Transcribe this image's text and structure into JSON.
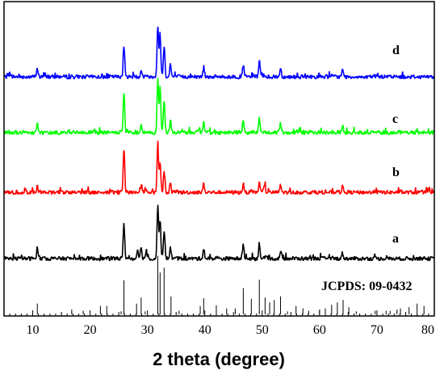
{
  "chart_data": {
    "type": "line",
    "xlabel": "2 theta (degree)",
    "ylabel": "",
    "xlim": [
      5,
      80
    ],
    "x_ticks": [
      10,
      20,
      30,
      40,
      50,
      60,
      70,
      80
    ],
    "y_ticks_shown": false,
    "series": [
      {
        "name": "d",
        "color": "#0000ff",
        "peaks": [
          [
            10.8,
            0.12
          ],
          [
            25.9,
            0.45
          ],
          [
            28.9,
            0.1
          ],
          [
            31.8,
            0.72
          ],
          [
            32.2,
            0.62
          ],
          [
            32.9,
            0.45
          ],
          [
            34.0,
            0.18
          ],
          [
            39.8,
            0.14
          ],
          [
            46.7,
            0.16
          ],
          [
            49.5,
            0.22
          ],
          [
            53.2,
            0.12
          ],
          [
            64.0,
            0.09
          ]
        ]
      },
      {
        "name": "c",
        "color": "#00ff00",
        "peaks": [
          [
            10.8,
            0.12
          ],
          [
            25.9,
            0.55
          ],
          [
            28.9,
            0.1
          ],
          [
            31.8,
            0.75
          ],
          [
            32.2,
            0.6
          ],
          [
            32.9,
            0.45
          ],
          [
            34.0,
            0.18
          ],
          [
            39.8,
            0.14
          ],
          [
            46.7,
            0.16
          ],
          [
            49.5,
            0.2
          ],
          [
            53.2,
            0.12
          ],
          [
            64.0,
            0.09
          ]
        ]
      },
      {
        "name": "b",
        "color": "#ff0000",
        "peaks": [
          [
            10.8,
            0.08
          ],
          [
            25.9,
            0.62
          ],
          [
            28.9,
            0.08
          ],
          [
            31.8,
            0.7
          ],
          [
            32.2,
            0.42
          ],
          [
            32.9,
            0.28
          ],
          [
            34.0,
            0.12
          ],
          [
            39.8,
            0.12
          ],
          [
            46.7,
            0.12
          ],
          [
            49.5,
            0.14
          ],
          [
            50.4,
            0.12
          ],
          [
            53.2,
            0.1
          ],
          [
            64.0,
            0.08
          ]
        ]
      },
      {
        "name": "a",
        "color": "#000000",
        "peaks": [
          [
            10.8,
            0.14
          ],
          [
            25.9,
            0.5
          ],
          [
            28.3,
            0.14
          ],
          [
            28.9,
            0.16
          ],
          [
            29.8,
            0.12
          ],
          [
            31.8,
            0.75
          ],
          [
            32.2,
            0.55
          ],
          [
            32.9,
            0.4
          ],
          [
            34.0,
            0.16
          ],
          [
            39.8,
            0.14
          ],
          [
            46.7,
            0.2
          ],
          [
            49.5,
            0.22
          ],
          [
            53.2,
            0.1
          ],
          [
            64.0,
            0.08
          ]
        ]
      }
    ],
    "reference": {
      "label": "JCPDS: 09-0432",
      "lines": [
        [
          10.8,
          0.18
        ],
        [
          16.8,
          0.08
        ],
        [
          18.8,
          0.06
        ],
        [
          21.8,
          0.14
        ],
        [
          22.9,
          0.14
        ],
        [
          25.4,
          0.05
        ],
        [
          25.9,
          0.57
        ],
        [
          28.1,
          0.18
        ],
        [
          28.9,
          0.28
        ],
        [
          29.6,
          0.05
        ],
        [
          31.8,
          0.98
        ],
        [
          32.2,
          0.7
        ],
        [
          32.9,
          0.78
        ],
        [
          34.1,
          0.3
        ],
        [
          35.5,
          0.06
        ],
        [
          39.2,
          0.14
        ],
        [
          39.8,
          0.27
        ],
        [
          42.0,
          0.15
        ],
        [
          43.8,
          0.1
        ],
        [
          45.3,
          0.1
        ],
        [
          46.7,
          0.44
        ],
        [
          48.1,
          0.26
        ],
        [
          49.5,
          0.58
        ],
        [
          50.5,
          0.28
        ],
        [
          51.3,
          0.2
        ],
        [
          52.1,
          0.24
        ],
        [
          53.2,
          0.3
        ],
        [
          54.4,
          0.05
        ],
        [
          55.9,
          0.14
        ],
        [
          57.1,
          0.1
        ],
        [
          58.1,
          0.06
        ],
        [
          60.0,
          0.08
        ],
        [
          61.0,
          0.1
        ],
        [
          62.1,
          0.16
        ],
        [
          63.1,
          0.2
        ],
        [
          64.1,
          0.24
        ],
        [
          65.1,
          0.12
        ],
        [
          66.4,
          0.05
        ],
        [
          69.7,
          0.06
        ],
        [
          71.6,
          0.06
        ],
        [
          72.3,
          0.06
        ],
        [
          73.5,
          0.08
        ],
        [
          74.1,
          0.1
        ],
        [
          75.6,
          0.12
        ],
        [
          77.0,
          0.18
        ],
        [
          78.2,
          0.14
        ]
      ]
    }
  }
}
